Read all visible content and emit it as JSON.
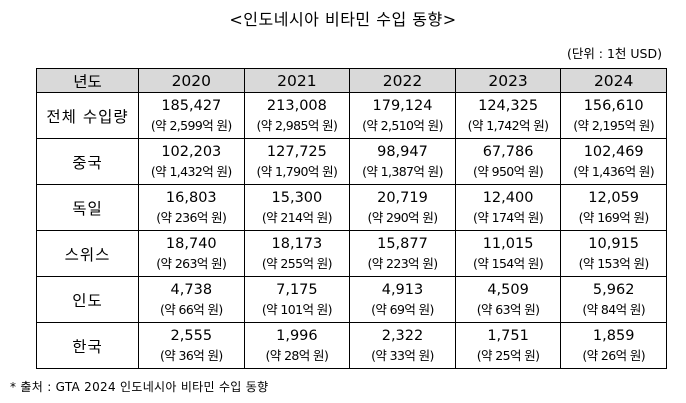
{
  "title": "<인도네시아 비타민 수입 동향>",
  "unit_note": "(단위 : 1천 USD)",
  "table": {
    "corner_header": "년도",
    "years": [
      "2020",
      "2021",
      "2022",
      "2023",
      "2024"
    ],
    "rows": [
      {
        "label": "전체 수입량",
        "values": [
          "185,427",
          "213,008",
          "179,124",
          "124,325",
          "156,610"
        ],
        "krw": [
          "(약 2,599억 원)",
          "(약 2,985억 원)",
          "(약 2,510억 원)",
          "(약 1,742억 원)",
          "(약 2,195억 원)"
        ]
      },
      {
        "label": "중국",
        "values": [
          "102,203",
          "127,725",
          "98,947",
          "67,786",
          "102,469"
        ],
        "krw": [
          "(약 1,432억 원)",
          "(약 1,790억 원)",
          "(약 1,387억 원)",
          "(약 950억 원)",
          "(약 1,436억 원)"
        ]
      },
      {
        "label": "독일",
        "values": [
          "16,803",
          "15,300",
          "20,719",
          "12,400",
          "12,059"
        ],
        "krw": [
          "(약 236억 원)",
          "(약 214억 원)",
          "(약 290억 원)",
          "(약 174억 원)",
          "(약 169억 원)"
        ]
      },
      {
        "label": "스위스",
        "values": [
          "18,740",
          "18,173",
          "15,877",
          "11,015",
          "10,915"
        ],
        "krw": [
          "(약 263억 원)",
          "(약 255억 원)",
          "(약 223억 원)",
          "(약 154억 원)",
          "(약 153억 원)"
        ]
      },
      {
        "label": "인도",
        "values": [
          "4,738",
          "7,175",
          "4,913",
          "4,509",
          "5,962"
        ],
        "krw": [
          "(약 66억 원)",
          "(약 101억 원)",
          "(약 69억 원)",
          "(약 63억 원)",
          "(약 84억 원)"
        ]
      },
      {
        "label": "한국",
        "values": [
          "2,555",
          "1,996",
          "2,322",
          "1,751",
          "1,859"
        ],
        "krw": [
          "(약 36억 원)",
          "(약 28억 원)",
          "(약 33억 원)",
          "(약 25억 원)",
          "(약 26억 원)"
        ]
      }
    ]
  },
  "source": "* 출처 : GTA 2024 인도네시아 비타민 수입 동향",
  "colors": {
    "header_background": "#d9d9d9",
    "border": "#000000",
    "text": "#000000"
  }
}
